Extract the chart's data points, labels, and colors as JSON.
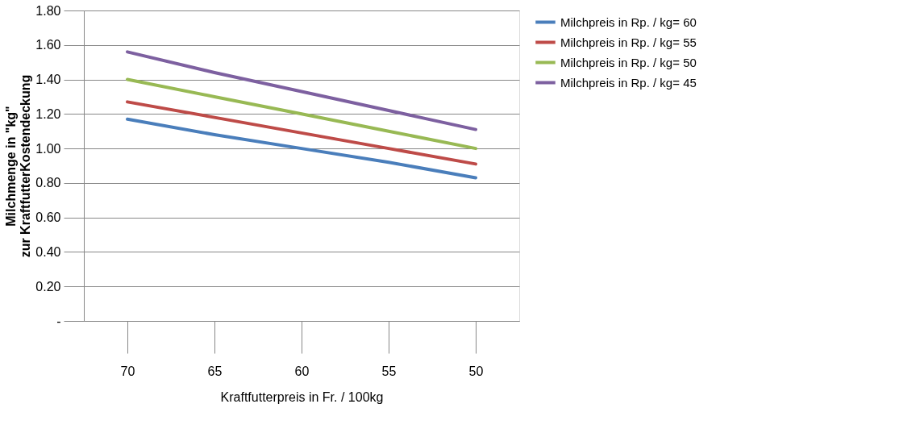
{
  "chart_data": {
    "type": "line",
    "xlabel": "Kraftfutterpreis in Fr. / 100kg",
    "ylabel": "Milchmenge in \"kg\"\nzur KraftfutterKostendeckung",
    "categories": [
      "70",
      "65",
      "60",
      "55",
      "50"
    ],
    "series": [
      {
        "name": "Milchpreis in Rp. / kg= 60",
        "color": "#4a7ebb",
        "values": [
          1.17,
          1.08,
          1.0,
          0.92,
          0.83
        ]
      },
      {
        "name": "Milchpreis in Rp. / kg= 55",
        "color": "#be4b48",
        "values": [
          1.27,
          1.18,
          1.09,
          1.0,
          0.91
        ]
      },
      {
        "name": "Milchpreis in Rp. / kg= 50",
        "color": "#98b954",
        "values": [
          1.4,
          1.3,
          1.2,
          1.1,
          1.0
        ]
      },
      {
        "name": "Milchpreis in Rp. / kg= 45",
        "color": "#7d60a0",
        "values": [
          1.56,
          1.44,
          1.33,
          1.22,
          1.11
        ]
      }
    ],
    "ylim": [
      0,
      1.8
    ],
    "yticks": [
      {
        "value": 0,
        "label": "-"
      },
      {
        "value": 0.2,
        "label": "0.20"
      },
      {
        "value": 0.4,
        "label": "0.40"
      },
      {
        "value": 0.6,
        "label": "0.60"
      },
      {
        "value": 0.8,
        "label": "0.80"
      },
      {
        "value": 1.0,
        "label": "1.00"
      },
      {
        "value": 1.2,
        "label": "1.20"
      },
      {
        "value": 1.4,
        "label": "1.40"
      },
      {
        "value": 1.6,
        "label": "1.60"
      },
      {
        "value": 1.8,
        "label": "1.80"
      }
    ],
    "grid": "y",
    "legend": "right",
    "marker": "none",
    "line_style": "solid"
  }
}
